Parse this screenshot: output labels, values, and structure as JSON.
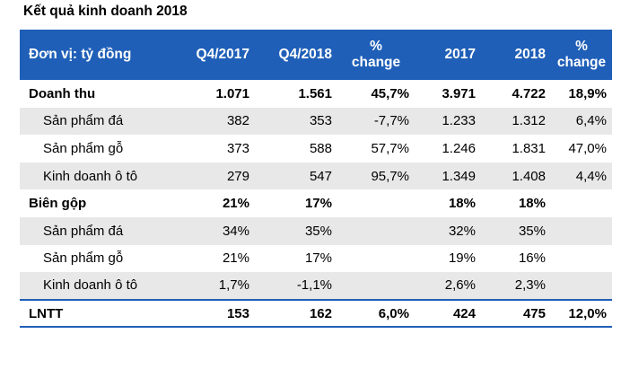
{
  "title": "Kết quả kinh doanh 2018",
  "header": {
    "unit": "Đơn vị: tỷ đồng",
    "q4_2017": "Q4/2017",
    "q4_2018": "Q4/2018",
    "pct_change_q_line1": "%",
    "pct_change_q_line2": "change",
    "y2017": "2017",
    "y2018": "2018",
    "pct_change_y_line1": "%",
    "pct_change_y_line2": "change"
  },
  "rows": [
    {
      "label": "Doanh thu",
      "q4_2017": "1.071",
      "q4_2018": "1.561",
      "pct_q": "45,7%",
      "y2017": "3.971",
      "y2018": "4.722",
      "pct_y": "18,9%"
    },
    {
      "label": "Sản phẩm đá",
      "q4_2017": "382",
      "q4_2018": "353",
      "pct_q": "-7,7%",
      "y2017": "1.233",
      "y2018": "1.312",
      "pct_y": "6,4%"
    },
    {
      "label": "Sản phẩm gỗ",
      "q4_2017": "373",
      "q4_2018": "588",
      "pct_q": "57,7%",
      "y2017": "1.246",
      "y2018": "1.831",
      "pct_y": "47,0%"
    },
    {
      "label": "Kinh doanh ô tô",
      "q4_2017": "279",
      "q4_2018": "547",
      "pct_q": "95,7%",
      "y2017": "1.349",
      "y2018": "1.408",
      "pct_y": "4,4%"
    },
    {
      "label": "Biên gộp",
      "q4_2017": "21%",
      "q4_2018": "17%",
      "pct_q": "",
      "y2017": "18%",
      "y2018": "18%",
      "pct_y": ""
    },
    {
      "label": "Sản phẩm đá",
      "q4_2017": "34%",
      "q4_2018": "35%",
      "pct_q": "",
      "y2017": "32%",
      "y2018": "35%",
      "pct_y": ""
    },
    {
      "label": "Sản phẩm gỗ",
      "q4_2017": "21%",
      "q4_2018": "17%",
      "pct_q": "",
      "y2017": "19%",
      "y2018": "16%",
      "pct_y": ""
    },
    {
      "label": "Kinh doanh ô tô",
      "q4_2017": "1,7%",
      "q4_2018": "-1,1%",
      "pct_q": "",
      "y2017": "2,6%",
      "y2018": "2,3%",
      "pct_y": ""
    },
    {
      "label": "LNTT",
      "q4_2017": "153",
      "q4_2018": "162",
      "pct_q": "6,0%",
      "y2017": "424",
      "y2018": "475",
      "pct_y": "12,0%"
    }
  ],
  "colors": {
    "header_bg": "#1f5fb8",
    "header_text": "#ffffff",
    "alt_row_bg": "#e8e8e8"
  }
}
